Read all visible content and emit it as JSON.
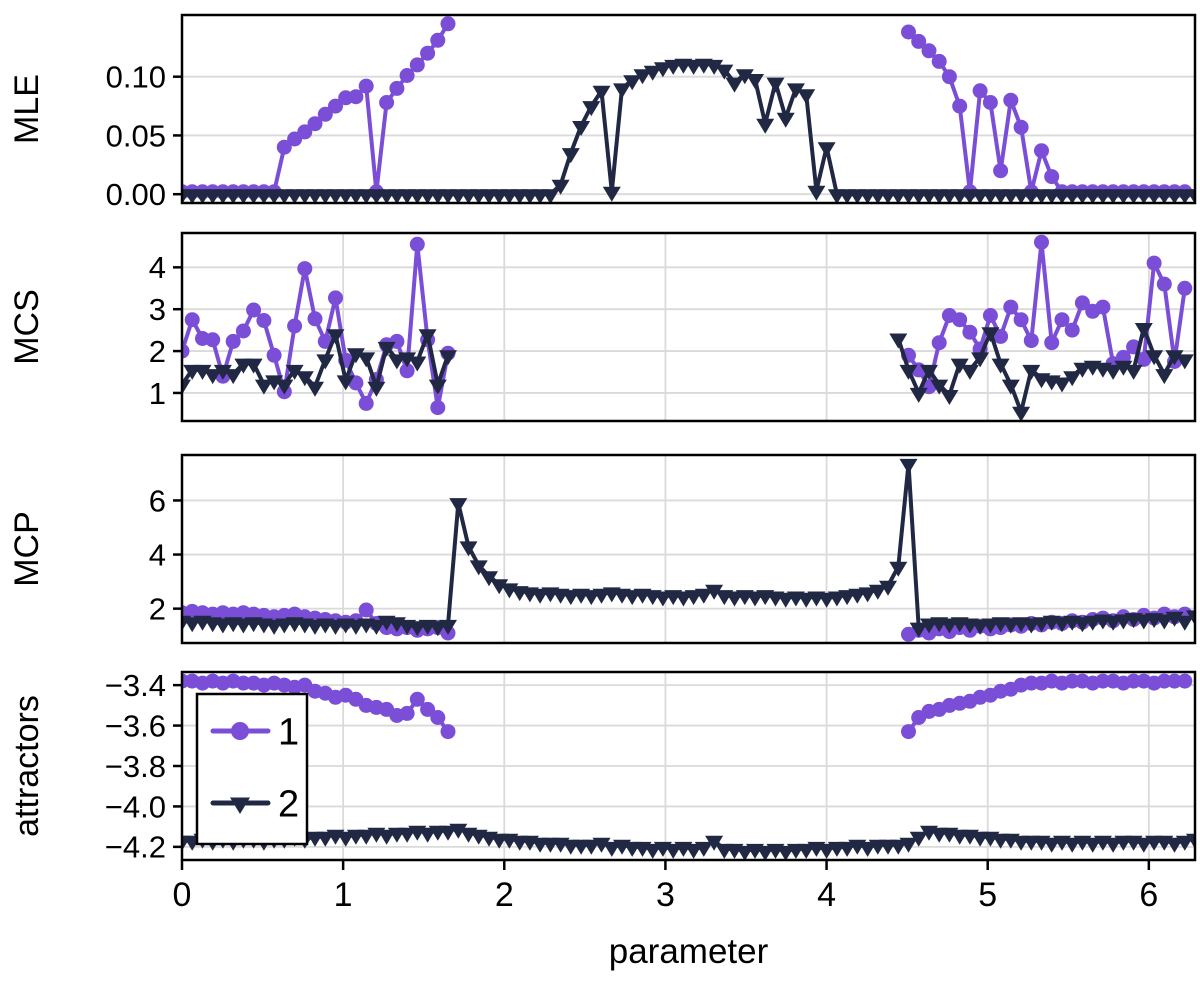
{
  "chart_data": {
    "type": "line",
    "xlabel": "parameter",
    "x_ticks": [
      0,
      1,
      2,
      3,
      4,
      5,
      6
    ],
    "x_tick_labels": [
      "0",
      "1",
      "2",
      "3",
      "4",
      "5",
      "6"
    ],
    "xlim": [
      0,
      6.2865
    ],
    "grid": "on",
    "legend_position": "upper-left-of-attractors-panel",
    "colors": {
      "series1": "#7A4ED6",
      "series2": "#212844",
      "grid": "#DADADA",
      "axis": "#000000",
      "background": "#FFFFFF"
    },
    "legend": {
      "entries": [
        {
          "label": "1",
          "marker": "circle",
          "color": "#7A4ED6"
        },
        {
          "label": "2",
          "marker": "triangle-down",
          "color": "#212844"
        }
      ]
    },
    "x": [
      0,
      0.0635,
      0.127,
      0.1905,
      0.254,
      0.3175,
      0.381,
      0.4445,
      0.508,
      0.5715,
      0.635,
      0.6985,
      0.762,
      0.8255,
      0.889,
      0.9525,
      1.016,
      1.0795,
      1.143,
      1.2065,
      1.27,
      1.3335,
      1.397,
      1.4605,
      1.524,
      1.5875,
      1.651,
      1.7145,
      1.778,
      1.8415,
      1.905,
      1.9685,
      2.032,
      2.0955,
      2.159,
      2.2225,
      2.286,
      2.3495,
      2.413,
      2.4765,
      2.54,
      2.6035,
      2.667,
      2.7305,
      2.794,
      2.8575,
      2.921,
      2.9845,
      3.048,
      3.1115,
      3.175,
      3.2385,
      3.302,
      3.3655,
      3.429,
      3.4925,
      3.556,
      3.6195,
      3.683,
      3.7465,
      3.81,
      3.8735,
      3.937,
      4.0005,
      4.064,
      4.1275,
      4.191,
      4.2545,
      4.318,
      4.3815,
      4.445,
      4.5085,
      4.572,
      4.6355,
      4.699,
      4.7625,
      4.826,
      4.8895,
      4.953,
      5.0165,
      5.08,
      5.1435,
      5.207,
      5.2705,
      5.334,
      5.3975,
      5.461,
      5.5245,
      5.588,
      5.6515,
      5.715,
      5.7785,
      5.842,
      5.9055,
      5.969,
      6.0325,
      6.096,
      6.1595,
      6.223,
      6.2865
    ],
    "panels": [
      {
        "ylabel": "MLE",
        "yticks": [
          0.0,
          0.05,
          0.1
        ],
        "ytick_labels": [
          "0.00",
          "0.05",
          "0.10"
        ],
        "ylim": [
          -0.0075,
          0.1525
        ],
        "vgrid": false,
        "series": [
          {
            "name": "1",
            "y": [
              0.002,
              0.002,
              0.002,
              0.002,
              0.002,
              0.002,
              0.002,
              0.002,
              0.002,
              0.002,
              0.04,
              0.047,
              0.053,
              0.06,
              0.068,
              0.075,
              0.082,
              0.083,
              0.092,
              0.002,
              0.078,
              0.09,
              0.101,
              0.11,
              0.12,
              0.131,
              0.145,
              null,
              null,
              null,
              null,
              null,
              null,
              null,
              null,
              null,
              null,
              null,
              null,
              null,
              null,
              null,
              null,
              null,
              null,
              null,
              null,
              null,
              null,
              null,
              null,
              null,
              null,
              null,
              null,
              null,
              null,
              null,
              null,
              null,
              null,
              null,
              null,
              null,
              null,
              null,
              null,
              null,
              null,
              null,
              null,
              0.138,
              0.13,
              0.122,
              0.113,
              0.1,
              0.075,
              0.002,
              0.088,
              0.078,
              0.02,
              0.08,
              0.057,
              0.002,
              0.037,
              0.015,
              0.002,
              0.002,
              0.002,
              0.002,
              0.002,
              0.002,
              0.002,
              0.002,
              0.002,
              0.002,
              0.002,
              0.002,
              0.002
            ]
          },
          {
            "name": "2",
            "y": [
              0,
              0,
              0,
              0,
              0,
              0,
              0,
              0,
              0,
              0,
              0,
              0,
              0,
              0,
              0,
              0,
              0,
              0,
              0,
              0,
              0,
              0,
              0,
              0,
              0,
              0,
              0,
              0,
              0,
              0,
              0,
              0,
              0,
              0,
              0,
              0,
              0,
              0.008,
              0.035,
              0.058,
              0.075,
              0.088,
              0.002,
              0.09,
              0.097,
              0.102,
              0.105,
              0.108,
              0.11,
              0.111,
              0.11,
              0.111,
              0.11,
              0.106,
              0.095,
              0.102,
              0.098,
              0.06,
              0.095,
              0.065,
              0.09,
              0.085,
              0.003,
              0.04,
              0,
              0,
              0,
              0,
              0,
              0,
              0,
              0,
              0,
              0,
              0,
              0,
              0,
              0,
              0,
              0,
              0,
              0,
              0,
              0,
              0,
              0,
              0,
              0,
              0,
              0,
              0,
              0,
              0,
              0,
              0,
              0,
              0,
              0,
              0,
              0
            ]
          }
        ]
      },
      {
        "ylabel": "MCS",
        "yticks": [
          1,
          2,
          3,
          4
        ],
        "ytick_labels": [
          "1",
          "2",
          "3",
          "4"
        ],
        "ylim": [
          0.33,
          4.82
        ],
        "vgrid": true,
        "series": [
          {
            "name": "1",
            "y": [
              2.0,
              2.75,
              2.3,
              2.27,
              1.4,
              2.23,
              2.48,
              2.98,
              2.73,
              1.9,
              1.03,
              2.6,
              3.97,
              2.77,
              2.23,
              3.27,
              1.78,
              1.24,
              0.75,
              1.32,
              2.15,
              2.23,
              1.53,
              4.55,
              2.27,
              0.65,
              1.95,
              null,
              null,
              null,
              null,
              null,
              null,
              null,
              null,
              null,
              null,
              null,
              null,
              null,
              null,
              null,
              null,
              null,
              null,
              null,
              null,
              null,
              null,
              null,
              null,
              null,
              null,
              null,
              null,
              null,
              null,
              null,
              null,
              null,
              null,
              null,
              null,
              null,
              null,
              null,
              null,
              null,
              null,
              null,
              null,
              1.9,
              1.55,
              1.15,
              2.2,
              2.85,
              2.75,
              2.45,
              2.05,
              2.85,
              2.35,
              3.05,
              2.75,
              2.25,
              4.6,
              2.2,
              2.75,
              2.5,
              3.15,
              2.95,
              3.05,
              1.7,
              1.85,
              2.1,
              1.8,
              4.1,
              3.6,
              1.75,
              3.5
            ]
          },
          {
            "name": "2",
            "y": [
              1.2,
              1.55,
              1.55,
              1.45,
              1.55,
              1.45,
              1.7,
              1.7,
              1.2,
              1.3,
              1.2,
              1.55,
              1.4,
              1.15,
              1.8,
              2.4,
              1.3,
              1.95,
              1.85,
              1.15,
              2.1,
              1.8,
              1.85,
              1.75,
              2.4,
              1.2,
              1.9,
              null,
              null,
              null,
              null,
              null,
              null,
              null,
              null,
              null,
              null,
              null,
              null,
              null,
              null,
              null,
              null,
              null,
              null,
              null,
              null,
              null,
              null,
              null,
              null,
              null,
              null,
              null,
              null,
              null,
              null,
              null,
              null,
              null,
              null,
              null,
              null,
              null,
              null,
              null,
              null,
              null,
              null,
              null,
              2.3,
              1.55,
              1.0,
              1.55,
              1.2,
              0.95,
              1.7,
              1.55,
              1.85,
              2.45,
              1.7,
              1.2,
              0.55,
              1.55,
              1.35,
              1.3,
              1.25,
              1.4,
              1.6,
              1.65,
              1.6,
              1.55,
              1.65,
              1.55,
              2.55,
              1.9,
              1.45,
              1.9,
              1.8
            ]
          }
        ]
      },
      {
        "ylabel": "MCP",
        "yticks": [
          2,
          4,
          6
        ],
        "ytick_labels": [
          "2",
          "4",
          "6"
        ],
        "ylim": [
          0.73,
          7.68
        ],
        "vgrid": true,
        "series": [
          {
            "name": "1",
            "y": [
              1.85,
              1.9,
              1.85,
              1.8,
              1.85,
              1.8,
              1.85,
              1.8,
              1.75,
              1.7,
              1.75,
              1.8,
              1.7,
              1.65,
              1.6,
              1.55,
              1.5,
              1.55,
              1.95,
              1.45,
              1.3,
              1.25,
              1.3,
              1.2,
              1.25,
              1.3,
              1.1,
              null,
              null,
              null,
              null,
              null,
              null,
              null,
              null,
              null,
              null,
              null,
              null,
              null,
              null,
              null,
              null,
              null,
              null,
              null,
              null,
              null,
              null,
              null,
              null,
              null,
              null,
              null,
              null,
              null,
              null,
              null,
              null,
              null,
              null,
              null,
              null,
              null,
              null,
              null,
              null,
              null,
              null,
              null,
              null,
              1.05,
              1.2,
              1.1,
              1.25,
              1.15,
              1.3,
              1.2,
              1.35,
              1.25,
              1.3,
              1.4,
              1.35,
              1.45,
              1.4,
              1.5,
              1.45,
              1.55,
              1.5,
              1.6,
              1.65,
              1.55,
              1.7,
              1.6,
              1.75,
              1.65,
              1.8,
              1.7,
              1.8
            ]
          },
          {
            "name": "2",
            "y": [
              1.55,
              1.5,
              1.55,
              1.5,
              1.45,
              1.5,
              1.45,
              1.5,
              1.45,
              1.4,
              1.45,
              1.5,
              1.45,
              1.4,
              1.45,
              1.4,
              1.45,
              1.4,
              1.45,
              1.4,
              1.55,
              1.5,
              1.4,
              1.35,
              1.4,
              1.35,
              1.4,
              5.9,
              4.3,
              3.6,
              3.2,
              2.9,
              2.75,
              2.65,
              2.6,
              2.55,
              2.6,
              2.55,
              2.5,
              2.55,
              2.5,
              2.55,
              2.6,
              2.55,
              2.5,
              2.55,
              2.5,
              2.45,
              2.5,
              2.45,
              2.5,
              2.55,
              2.7,
              2.5,
              2.45,
              2.5,
              2.45,
              2.5,
              2.45,
              2.4,
              2.45,
              2.4,
              2.45,
              2.4,
              2.45,
              2.5,
              2.55,
              2.6,
              2.7,
              2.85,
              3.55,
              7.35,
              1.3,
              1.45,
              1.5,
              1.45,
              1.5,
              1.45,
              1.4,
              1.45,
              1.5,
              1.45,
              1.5,
              1.45,
              1.5,
              1.55,
              1.5,
              1.55,
              1.5,
              1.55,
              1.6,
              1.55,
              1.6,
              1.65,
              1.6,
              1.65,
              1.6,
              1.7,
              1.55,
              1.75
            ]
          }
        ]
      },
      {
        "ylabel": "attractors",
        "yticks": [
          -3.4,
          -3.6,
          -3.8,
          -4.0,
          -4.2
        ],
        "ytick_labels": [
          "−3.4",
          "−3.6",
          "−3.8",
          "−4.0",
          "−4.2"
        ],
        "ylim": [
          -4.265,
          -3.335
        ],
        "vgrid": true,
        "has_legend": true,
        "series": [
          {
            "name": "1",
            "y": [
              -3.38,
              -3.38,
              -3.39,
              -3.38,
              -3.39,
              -3.38,
              -3.39,
              -3.39,
              -3.4,
              -3.39,
              -3.4,
              -3.41,
              -3.4,
              -3.43,
              -3.44,
              -3.46,
              -3.45,
              -3.47,
              -3.5,
              -3.51,
              -3.52,
              -3.55,
              -3.54,
              -3.47,
              -3.52,
              -3.56,
              -3.63,
              null,
              null,
              null,
              null,
              null,
              null,
              null,
              null,
              null,
              null,
              null,
              null,
              null,
              null,
              null,
              null,
              null,
              null,
              null,
              null,
              null,
              null,
              null,
              null,
              null,
              null,
              null,
              null,
              null,
              null,
              null,
              null,
              null,
              null,
              null,
              null,
              null,
              null,
              null,
              null,
              null,
              null,
              null,
              null,
              -3.63,
              -3.56,
              -3.53,
              -3.52,
              -3.5,
              -3.49,
              -3.48,
              -3.46,
              -3.45,
              -3.43,
              -3.42,
              -3.4,
              -3.39,
              -3.39,
              -3.38,
              -3.39,
              -3.38,
              -3.38,
              -3.39,
              -3.38,
              -3.38,
              -3.39,
              -3.38,
              -3.38,
              -3.39,
              -3.38,
              -3.38,
              -3.38
            ]
          },
          {
            "name": "2",
            "y": [
              -4.17,
              -4.17,
              -4.16,
              -4.17,
              -4.16,
              -4.17,
              -4.16,
              -4.16,
              -4.17,
              -4.16,
              -4.16,
              -4.15,
              -4.16,
              -4.15,
              -4.15,
              -4.14,
              -4.15,
              -4.14,
              -4.14,
              -4.13,
              -4.14,
              -4.13,
              -4.13,
              -4.12,
              -4.13,
              -4.12,
              -4.12,
              -4.11,
              -4.13,
              -4.14,
              -4.15,
              -4.16,
              -4.16,
              -4.17,
              -4.17,
              -4.18,
              -4.18,
              -4.18,
              -4.19,
              -4.19,
              -4.19,
              -4.18,
              -4.2,
              -4.19,
              -4.2,
              -4.2,
              -4.21,
              -4.2,
              -4.21,
              -4.2,
              -4.21,
              -4.2,
              -4.17,
              -4.21,
              -4.21,
              -4.22,
              -4.21,
              -4.22,
              -4.21,
              -4.22,
              -4.21,
              -4.21,
              -4.2,
              -4.21,
              -4.2,
              -4.2,
              -4.19,
              -4.2,
              -4.19,
              -4.19,
              -4.19,
              -4.18,
              -4.15,
              -4.12,
              -4.13,
              -4.13,
              -4.14,
              -4.14,
              -4.15,
              -4.15,
              -4.16,
              -4.16,
              -4.17,
              -4.17,
              -4.17,
              -4.18,
              -4.17,
              -4.18,
              -4.17,
              -4.18,
              -4.17,
              -4.18,
              -4.17,
              -4.17,
              -4.18,
              -4.17,
              -4.17,
              -4.18,
              -4.17,
              -4.16
            ]
          }
        ]
      }
    ]
  }
}
